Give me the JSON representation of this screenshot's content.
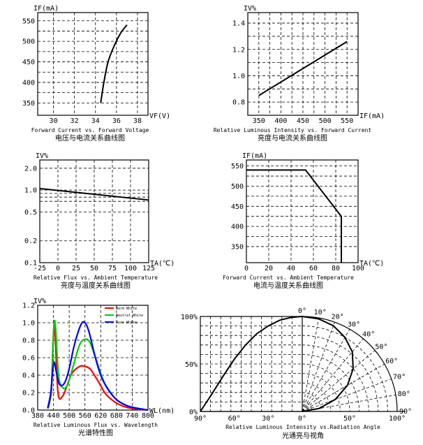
{
  "chart_data": [
    {
      "id": "vf",
      "type": "line",
      "ylabel": "IF(mA)",
      "xlabel": "VF(V)",
      "title": "Forward Current vs. Forward Voltage",
      "subtitle": "电压与电流关系曲线图",
      "xticks": [
        "30",
        "32",
        "34",
        "36",
        "38"
      ],
      "yticks": [
        "350",
        "400",
        "450",
        "500",
        "550"
      ],
      "xlim": [
        28.5,
        39
      ],
      "ylim": [
        320,
        570
      ],
      "series": [
        {
          "name": "IF",
          "x": [
            34.5,
            34.8,
            35.2,
            35.8,
            36.4,
            37.0
          ],
          "y": [
            350,
            400,
            450,
            490,
            520,
            540
          ]
        }
      ]
    },
    {
      "id": "iv-if",
      "type": "line",
      "ylabel": "IV%",
      "xlabel": "IF(mA)",
      "title": "Relative Luminous Intensity vs. Forward Current",
      "subtitle": "亮度与电流关系曲线图",
      "xticks": [
        "350",
        "400",
        "450",
        "500",
        "550"
      ],
      "yticks": [
        "0.8",
        "1.0",
        "1.2",
        "1.4"
      ],
      "xlim": [
        325,
        575
      ],
      "ylim": [
        0.7,
        1.48
      ],
      "series": [
        {
          "name": "IV",
          "x": [
            350,
            550
          ],
          "y": [
            0.85,
            1.26
          ]
        }
      ]
    },
    {
      "id": "iv-ta",
      "type": "line",
      "ylabel": "IV%",
      "xlabel": "TA(℃)",
      "title": "Relative Flux vs. Ambient Temperature",
      "subtitle": "亮度与温度关系曲线图",
      "xticks": [
        "-25",
        "0",
        "25",
        "50",
        "75",
        "100",
        "125"
      ],
      "yticks": [
        "0.1",
        "0.2",
        "0.5",
        "1.0",
        "2.0"
      ],
      "xlim": [
        -25,
        125
      ],
      "ylim": [
        0.1,
        2.6
      ],
      "series": [
        {
          "name": "IV",
          "x": [
            -25,
            125
          ],
          "y": [
            1.05,
            0.73
          ]
        }
      ]
    },
    {
      "id": "if-ta",
      "type": "line",
      "ylabel": "IF(mA)",
      "xlabel": "TA(℃)",
      "title": "Forward Current vs. Ambient Temperature",
      "subtitle": "电流与温度关系曲线图",
      "xticks": [
        "0",
        "20",
        "40",
        "60",
        "80",
        "100"
      ],
      "yticks": [
        "350",
        "400",
        "450",
        "500",
        "550"
      ],
      "xlim": [
        0,
        100
      ],
      "ylim": [
        310,
        565
      ],
      "series": [
        {
          "name": "IF",
          "x": [
            0,
            53,
            85,
            85
          ],
          "y": [
            540,
            540,
            425,
            310
          ]
        }
      ]
    },
    {
      "id": "spectrum",
      "type": "line",
      "ylabel": "IV%",
      "xlabel": "WL(nm)",
      "title": "Relative Luminous Flux vs. Wavelength",
      "subtitle": "光谱特性图",
      "xticks": [
        "380",
        "440",
        "500",
        "560",
        "620",
        "680",
        "740",
        "800"
      ],
      "yticks": [
        "0.0",
        "0.2",
        "0.4",
        "0.6",
        "0.8",
        "1.0",
        "1.2"
      ],
      "xlim": [
        380,
        800
      ],
      "ylim": [
        0,
        1.2
      ],
      "legend": [
        "Warm White",
        "Neutral White",
        "Pure White"
      ],
      "series": [
        {
          "name": "Warm White",
          "color": "#ff0000",
          "x": [
            420,
            432,
            438,
            443,
            448,
            458,
            475,
            492,
            510,
            540,
            560,
            580,
            600,
            620,
            640,
            680,
            720,
            760,
            800
          ],
          "y": [
            0.02,
            0.22,
            0.72,
            1.0,
            0.75,
            0.18,
            0.16,
            0.28,
            0.42,
            0.5,
            0.5,
            0.47,
            0.38,
            0.28,
            0.18,
            0.08,
            0.03,
            0.01,
            0.0
          ]
        },
        {
          "name": "Neutral White",
          "color": "#00cc00",
          "x": [
            420,
            432,
            438,
            443,
            448,
            460,
            478,
            495,
            515,
            540,
            560,
            578,
            600,
            620,
            640,
            680,
            720,
            760,
            800
          ],
          "y": [
            0.02,
            0.25,
            0.75,
            1.0,
            0.95,
            0.38,
            0.25,
            0.3,
            0.5,
            0.75,
            0.81,
            0.78,
            0.6,
            0.42,
            0.28,
            0.12,
            0.05,
            0.02,
            0.0
          ]
        },
        {
          "name": "Pure White",
          "color": "#0000ff",
          "x": [
            418,
            430,
            437,
            443,
            450,
            462,
            480,
            498,
            520,
            545,
            560,
            575,
            598,
            620,
            645,
            680,
            720,
            760,
            800
          ],
          "y": [
            0.02,
            0.2,
            0.45,
            0.55,
            0.45,
            0.3,
            0.3,
            0.45,
            0.75,
            0.98,
            1.0,
            0.9,
            0.62,
            0.4,
            0.25,
            0.12,
            0.05,
            0.02,
            0.0
          ]
        }
      ]
    },
    {
      "id": "angle",
      "type": "line",
      "title": "Relative Luminous Intensity vs.Radiation Angle",
      "subtitle": "光通亮与视角",
      "yticks": [
        "0%",
        "50%",
        "100%"
      ],
      "xticks": [
        "90°",
        "60°",
        "30°",
        "0°",
        "50°",
        "100°"
      ],
      "polar_labels": [
        "0°",
        "10°",
        "20°",
        "30°",
        "40°",
        "50°",
        "60°",
        "70°",
        "80°",
        "90°"
      ],
      "series": [
        {
          "name": "IV",
          "angle": [
            0,
            10,
            20,
            30,
            40,
            50,
            60,
            70,
            80,
            90
          ],
          "value": [
            1.0,
            0.99,
            0.96,
            0.9,
            0.82,
            0.7,
            0.55,
            0.37,
            0.18,
            0.0
          ]
        }
      ]
    }
  ]
}
